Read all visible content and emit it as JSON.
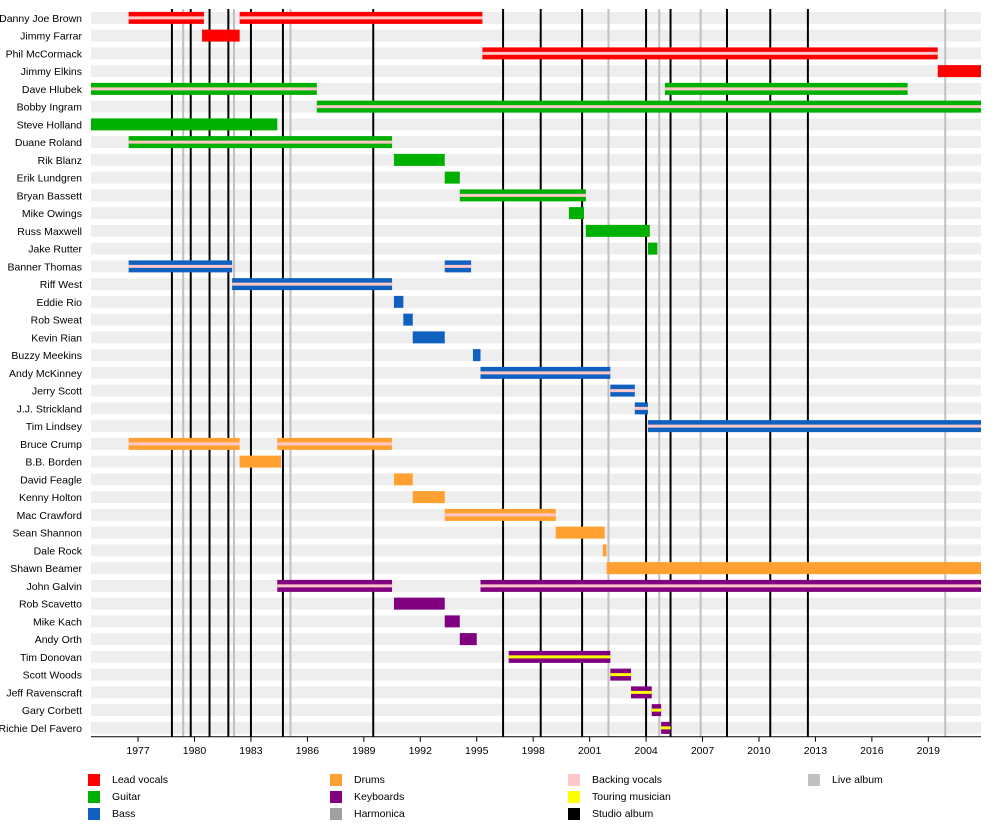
{
  "chart_data": {
    "type": "timeline",
    "xlim": [
      1974.5,
      2021.8
    ],
    "ticks": [
      1977,
      1980,
      1983,
      1986,
      1989,
      1992,
      1995,
      1998,
      2001,
      2004,
      2007,
      2010,
      2013,
      2016,
      2019
    ],
    "tick_labels": [
      "1977",
      "1980",
      "1983",
      "1986",
      "1989",
      "1992",
      "1995",
      "1998",
      "2001",
      "2004",
      "2007",
      "2010",
      "2013",
      "2016",
      "2019"
    ],
    "colors": {
      "Lead vocals": "#ff0000",
      "Guitar": "#00b000",
      "Bass": "#1060c0",
      "Drums": "#ffa030",
      "Keyboards": "#800080",
      "Harmonica": "#a0a0a0",
      "Backing vocals": "#ffc8c8",
      "Touring musician": "#ffff00",
      "Studio album": "#000000",
      "Live album": "#c0c0c0"
    },
    "studio_albums": [
      1978.8,
      1979.8,
      1980.8,
      1981.8,
      1983.0,
      1984.7,
      1989.5,
      1996.4,
      1998.4,
      2000.6,
      2004.0,
      2005.3,
      2008.3,
      2010.6,
      2012.6
    ],
    "live_albums": [
      1979.4,
      1982.1,
      1985.1,
      2002.0,
      2004.7,
      2006.9,
      2019.9
    ],
    "members": [
      {
        "name": "Danny Joe Brown",
        "bars": [
          {
            "start": 1976.5,
            "end": 1980.5,
            "role": "Lead vocals",
            "secondary": "Backing vocals"
          },
          {
            "start": 1982.4,
            "end": 1995.3,
            "role": "Lead vocals",
            "secondary": "Backing vocals"
          }
        ]
      },
      {
        "name": "Jimmy Farrar",
        "bars": [
          {
            "start": 1980.4,
            "end": 1982.4,
            "role": "Lead vocals"
          }
        ]
      },
      {
        "name": "Phil McCormack",
        "bars": [
          {
            "start": 1995.3,
            "end": 2019.5,
            "role": "Lead vocals",
            "secondary": "Backing vocals"
          }
        ]
      },
      {
        "name": "Jimmy Elkins",
        "bars": [
          {
            "start": 2019.5,
            "end": 2021.8,
            "role": "Lead vocals"
          }
        ]
      },
      {
        "name": "Dave Hlubek",
        "bars": [
          {
            "start": 1974.5,
            "end": 1986.5,
            "role": "Guitar",
            "secondary": "Backing vocals"
          },
          {
            "start": 2005.0,
            "end": 2017.9,
            "role": "Guitar",
            "secondary": "Backing vocals"
          }
        ]
      },
      {
        "name": "Bobby Ingram",
        "bars": [
          {
            "start": 1986.5,
            "end": 2021.8,
            "role": "Guitar",
            "secondary": "Backing vocals"
          }
        ]
      },
      {
        "name": "Steve Holland",
        "bars": [
          {
            "start": 1974.5,
            "end": 1984.4,
            "role": "Guitar"
          }
        ]
      },
      {
        "name": "Duane Roland",
        "bars": [
          {
            "start": 1976.5,
            "end": 1990.5,
            "role": "Guitar",
            "secondary": "Backing vocals"
          }
        ]
      },
      {
        "name": "Rik Blanz",
        "bars": [
          {
            "start": 1990.6,
            "end": 1993.3,
            "role": "Guitar"
          }
        ]
      },
      {
        "name": "Erik Lundgren",
        "bars": [
          {
            "start": 1993.3,
            "end": 1994.1,
            "role": "Guitar"
          }
        ]
      },
      {
        "name": "Bryan Bassett",
        "bars": [
          {
            "start": 1994.1,
            "end": 2000.8,
            "role": "Guitar",
            "secondary": "Backing vocals"
          }
        ]
      },
      {
        "name": "Mike Owings",
        "bars": [
          {
            "start": 1999.9,
            "end": 2000.7,
            "role": "Guitar"
          }
        ]
      },
      {
        "name": "Russ Maxwell",
        "bars": [
          {
            "start": 2000.8,
            "end": 2004.2,
            "role": "Guitar"
          }
        ]
      },
      {
        "name": "Jake Rutter",
        "bars": [
          {
            "start": 2004.1,
            "end": 2004.6,
            "role": "Guitar"
          }
        ]
      },
      {
        "name": "Banner Thomas",
        "bars": [
          {
            "start": 1976.5,
            "end": 1982.0,
            "role": "Bass",
            "secondary": "Backing vocals"
          },
          {
            "start": 1993.3,
            "end": 1994.7,
            "role": "Bass",
            "secondary": "Backing vocals"
          }
        ]
      },
      {
        "name": "Riff West",
        "bars": [
          {
            "start": 1982.0,
            "end": 1990.5,
            "role": "Bass",
            "secondary": "Backing vocals"
          }
        ]
      },
      {
        "name": "Eddie Rio",
        "bars": [
          {
            "start": 1990.6,
            "end": 1991.1,
            "role": "Bass"
          }
        ]
      },
      {
        "name": "Rob Sweat",
        "bars": [
          {
            "start": 1991.1,
            "end": 1991.6,
            "role": "Bass"
          }
        ]
      },
      {
        "name": "Kevin Rian",
        "bars": [
          {
            "start": 1991.6,
            "end": 1993.3,
            "role": "Bass"
          }
        ]
      },
      {
        "name": "Buzzy Meekins",
        "bars": [
          {
            "start": 1994.8,
            "end": 1995.2,
            "role": "Bass"
          }
        ]
      },
      {
        "name": "Andy McKinney",
        "bars": [
          {
            "start": 1995.2,
            "end": 2002.1,
            "role": "Bass",
            "secondary": "Backing vocals"
          }
        ]
      },
      {
        "name": "Jerry Scott",
        "bars": [
          {
            "start": 2002.1,
            "end": 2003.4,
            "role": "Bass",
            "secondary": "Backing vocals"
          }
        ]
      },
      {
        "name": "J.J. Strickland",
        "bars": [
          {
            "start": 2003.4,
            "end": 2004.1,
            "role": "Bass",
            "secondary": "Backing vocals"
          }
        ]
      },
      {
        "name": "Tim Lindsey",
        "bars": [
          {
            "start": 2004.1,
            "end": 2021.8,
            "role": "Bass",
            "secondary": "Backing vocals"
          }
        ]
      },
      {
        "name": "Bruce Crump",
        "bars": [
          {
            "start": 1976.5,
            "end": 1982.4,
            "role": "Drums",
            "secondary": "Backing vocals"
          },
          {
            "start": 1984.4,
            "end": 1990.5,
            "role": "Drums",
            "secondary": "Backing vocals"
          }
        ]
      },
      {
        "name": "B.B. Borden",
        "bars": [
          {
            "start": 1982.4,
            "end": 1984.6,
            "role": "Drums"
          }
        ]
      },
      {
        "name": "David Feagle",
        "bars": [
          {
            "start": 1990.6,
            "end": 1991.6,
            "role": "Drums"
          }
        ]
      },
      {
        "name": "Kenny Holton",
        "bars": [
          {
            "start": 1991.6,
            "end": 1993.3,
            "role": "Drums"
          }
        ]
      },
      {
        "name": "Mac Crawford",
        "bars": [
          {
            "start": 1993.3,
            "end": 1999.2,
            "role": "Drums",
            "secondary": "Backing vocals"
          }
        ]
      },
      {
        "name": "Sean Shannon",
        "bars": [
          {
            "start": 1999.2,
            "end": 2001.8,
            "role": "Drums"
          }
        ]
      },
      {
        "name": "Dale Rock",
        "bars": [
          {
            "start": 2001.7,
            "end": 2001.9,
            "role": "Drums"
          }
        ]
      },
      {
        "name": "Shawn Beamer",
        "bars": [
          {
            "start": 2001.9,
            "end": 2021.8,
            "role": "Drums"
          }
        ]
      },
      {
        "name": "John Galvin",
        "bars": [
          {
            "start": 1984.4,
            "end": 1990.5,
            "role": "Keyboards",
            "secondary": "Backing vocals"
          },
          {
            "start": 1995.2,
            "end": 2021.8,
            "role": "Keyboards",
            "secondary": "Backing vocals"
          }
        ]
      },
      {
        "name": "Rob Scavetto",
        "bars": [
          {
            "start": 1990.6,
            "end": 1993.3,
            "role": "Keyboards"
          }
        ]
      },
      {
        "name": "Mike Kach",
        "bars": [
          {
            "start": 1993.3,
            "end": 1994.1,
            "role": "Keyboards"
          }
        ]
      },
      {
        "name": "Andy Orth",
        "bars": [
          {
            "start": 1994.1,
            "end": 1995.0,
            "role": "Keyboards"
          }
        ]
      },
      {
        "name": "Tim Donovan",
        "bars": [
          {
            "start": 1996.7,
            "end": 2002.1,
            "role": "Keyboards",
            "secondary": "Touring musician"
          }
        ]
      },
      {
        "name": "Scott Woods",
        "bars": [
          {
            "start": 2002.1,
            "end": 2003.2,
            "role": "Keyboards",
            "secondary": "Touring musician"
          }
        ]
      },
      {
        "name": "Jeff Ravenscraft",
        "bars": [
          {
            "start": 2003.2,
            "end": 2004.3,
            "role": "Keyboards",
            "secondary": "Touring musician"
          }
        ]
      },
      {
        "name": "Gary Corbett",
        "bars": [
          {
            "start": 2004.3,
            "end": 2004.8,
            "role": "Keyboards",
            "secondary": "Touring musician"
          }
        ]
      },
      {
        "name": "Richie Del Favero",
        "bars": [
          {
            "start": 2004.8,
            "end": 2005.3,
            "role": "Keyboards",
            "secondary": "Touring musician"
          }
        ]
      }
    ],
    "legend": [
      {
        "label": "Lead vocals",
        "color": "#ff0000"
      },
      {
        "label": "Guitar",
        "color": "#00b000"
      },
      {
        "label": "Bass",
        "color": "#1060c0"
      },
      {
        "label": "Drums",
        "color": "#ffa030"
      },
      {
        "label": "Keyboards",
        "color": "#800080"
      },
      {
        "label": "Harmonica",
        "color": "#a0a0a0"
      },
      {
        "label": "Backing vocals",
        "color": "#ffc8c8"
      },
      {
        "label": "Touring musician",
        "color": "#ffff00"
      },
      {
        "label": "Studio album",
        "color": "#000000"
      },
      {
        "label": "Live album",
        "color": "#c0c0c0"
      }
    ]
  }
}
